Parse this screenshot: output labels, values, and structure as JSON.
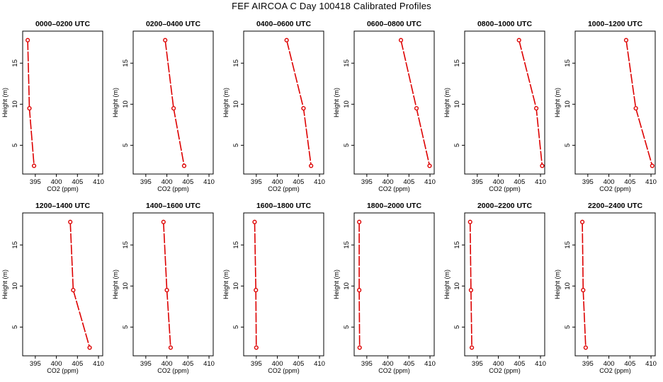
{
  "title": "FEF AIRCOA C  Day 100418  Calibrated Profiles",
  "colors": {
    "line": "#dd0000",
    "axis": "#000000",
    "background": "#ffffff"
  },
  "chart_data": [
    {
      "type": "line",
      "title": "0000–0200 UTC",
      "xlabel": "CO2 (ppm)",
      "ylabel": "Height (m)",
      "xlim": [
        392,
        411
      ],
      "ylim": [
        1.5,
        18.9
      ],
      "xticks": [
        395,
        400,
        405,
        410
      ],
      "yticks": [
        5,
        10,
        15
      ],
      "x": [
        393.2,
        393.6,
        394.7
      ],
      "y": [
        17.8,
        9.5,
        2.5
      ],
      "style": "dashed-with-open-circles",
      "grid": false
    },
    {
      "type": "line",
      "title": "0200–0400 UTC",
      "xlabel": "CO2 (ppm)",
      "ylabel": "Height (m)",
      "xlim": [
        392,
        411
      ],
      "ylim": [
        1.5,
        18.9
      ],
      "xticks": [
        395,
        400,
        405,
        410
      ],
      "yticks": [
        5,
        10,
        15
      ],
      "x": [
        399.6,
        401.6,
        404.1
      ],
      "y": [
        17.8,
        9.5,
        2.5
      ],
      "style": "dashed-with-open-circles",
      "grid": false
    },
    {
      "type": "line",
      "title": "0400–0600 UTC",
      "xlabel": "CO2 (ppm)",
      "ylabel": "Height (m)",
      "xlim": [
        392,
        411
      ],
      "ylim": [
        1.5,
        18.9
      ],
      "xticks": [
        395,
        400,
        405,
        410
      ],
      "yticks": [
        5,
        10,
        15
      ],
      "x": [
        402.2,
        406.2,
        408.0
      ],
      "y": [
        17.8,
        9.5,
        2.5
      ],
      "style": "dashed-with-open-circles",
      "grid": false
    },
    {
      "type": "line",
      "title": "0600–0800 UTC",
      "xlabel": "CO2 (ppm)",
      "ylabel": "Height (m)",
      "xlim": [
        392,
        411
      ],
      "ylim": [
        1.5,
        18.9
      ],
      "xticks": [
        395,
        400,
        405,
        410
      ],
      "yticks": [
        5,
        10,
        15
      ],
      "x": [
        403.1,
        406.8,
        409.9
      ],
      "y": [
        17.8,
        9.5,
        2.5
      ],
      "style": "dashed-with-open-circles",
      "grid": false
    },
    {
      "type": "line",
      "title": "0800–1000 UTC",
      "xlabel": "CO2 (ppm)",
      "ylabel": "Height (m)",
      "xlim": [
        392,
        411
      ],
      "ylim": [
        1.5,
        18.9
      ],
      "xticks": [
        395,
        400,
        405,
        410
      ],
      "yticks": [
        5,
        10,
        15
      ],
      "x": [
        404.9,
        409.0,
        410.4
      ],
      "y": [
        17.8,
        9.5,
        2.5
      ],
      "style": "dashed-with-open-circles",
      "grid": false
    },
    {
      "type": "line",
      "title": "1000–1200 UTC",
      "xlabel": "CO2 (ppm)",
      "ylabel": "Height (m)",
      "xlim": [
        392,
        411
      ],
      "ylim": [
        1.5,
        18.9
      ],
      "xticks": [
        395,
        400,
        405,
        410
      ],
      "yticks": [
        5,
        10,
        15
      ],
      "x": [
        404.1,
        406.4,
        410.3
      ],
      "y": [
        17.8,
        9.5,
        2.5
      ],
      "style": "dashed-with-open-circles",
      "grid": false
    },
    {
      "type": "line",
      "title": "1200–1400 UTC",
      "xlabel": "CO2 (ppm)",
      "ylabel": "Height (m)",
      "xlim": [
        392,
        411
      ],
      "ylim": [
        1.5,
        18.9
      ],
      "xticks": [
        395,
        400,
        405,
        410
      ],
      "yticks": [
        5,
        10,
        15
      ],
      "x": [
        403.3,
        404.0,
        407.9
      ],
      "y": [
        17.8,
        9.5,
        2.5
      ],
      "style": "dashed-with-open-circles",
      "grid": false
    },
    {
      "type": "line",
      "title": "1400–1600 UTC",
      "xlabel": "CO2 (ppm)",
      "ylabel": "Height (m)",
      "xlim": [
        392,
        411
      ],
      "ylim": [
        1.5,
        18.9
      ],
      "xticks": [
        395,
        400,
        405,
        410
      ],
      "yticks": [
        5,
        10,
        15
      ],
      "x": [
        399.2,
        400.0,
        400.9
      ],
      "y": [
        17.8,
        9.5,
        2.5
      ],
      "style": "dashed-with-open-circles",
      "grid": false
    },
    {
      "type": "line",
      "title": "1600–1800 UTC",
      "xlabel": "CO2 (ppm)",
      "ylabel": "Height (m)",
      "xlim": [
        392,
        411
      ],
      "ylim": [
        1.5,
        18.9
      ],
      "xticks": [
        395,
        400,
        405,
        410
      ],
      "yticks": [
        5,
        10,
        15
      ],
      "x": [
        394.6,
        394.9,
        395.0
      ],
      "y": [
        17.8,
        9.5,
        2.5
      ],
      "style": "dashed-with-open-circles",
      "grid": false
    },
    {
      "type": "line",
      "title": "1800–2000 UTC",
      "xlabel": "CO2 (ppm)",
      "ylabel": "Height (m)",
      "xlim": [
        392,
        411
      ],
      "ylim": [
        1.5,
        18.9
      ],
      "xticks": [
        395,
        400,
        405,
        410
      ],
      "yticks": [
        5,
        10,
        15
      ],
      "x": [
        393.2,
        393.2,
        393.3
      ],
      "y": [
        17.8,
        9.5,
        2.5
      ],
      "style": "dashed-with-open-circles",
      "grid": false
    },
    {
      "type": "line",
      "title": "2000–2200 UTC",
      "xlabel": "CO2 (ppm)",
      "ylabel": "Height (m)",
      "xlim": [
        392,
        411
      ],
      "ylim": [
        1.5,
        18.9
      ],
      "xticks": [
        395,
        400,
        405,
        410
      ],
      "yticks": [
        5,
        10,
        15
      ],
      "x": [
        393.3,
        393.5,
        393.7
      ],
      "y": [
        17.8,
        9.5,
        2.5
      ],
      "style": "dashed-with-open-circles",
      "grid": false
    },
    {
      "type": "line",
      "title": "2200–2400 UTC",
      "xlabel": "CO2 (ppm)",
      "ylabel": "Height (m)",
      "xlim": [
        392,
        411
      ],
      "ylim": [
        1.5,
        18.9
      ],
      "xticks": [
        395,
        400,
        405,
        410
      ],
      "yticks": [
        5,
        10,
        15
      ],
      "x": [
        393.7,
        393.9,
        394.5
      ],
      "y": [
        17.8,
        9.5,
        2.5
      ],
      "style": "dashed-with-open-circles",
      "grid": false
    }
  ]
}
